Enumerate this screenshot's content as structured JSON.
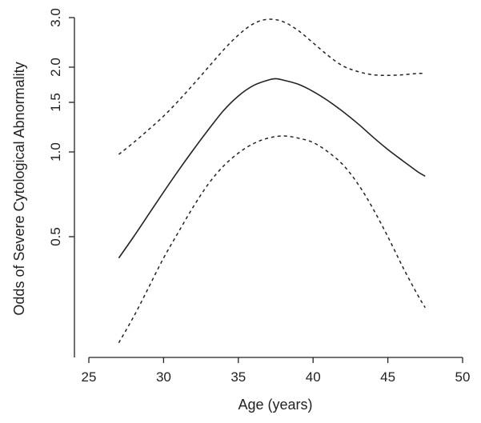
{
  "chart_data": {
    "type": "line",
    "title": "",
    "xlabel": "Age (years)",
    "ylabel": "Odds of Severe Cytological Abnormality",
    "xlim": [
      25,
      50
    ],
    "ylim": [
      0.2,
      3.0
    ],
    "yscale": "log",
    "grid": false,
    "x_ticks": [
      25,
      30,
      35,
      40,
      45,
      50
    ],
    "x_tick_labels": [
      "25",
      "30",
      "35",
      "40",
      "45",
      "50"
    ],
    "y_ticks": [
      0.5,
      1.0,
      1.5,
      2.0,
      3.0
    ],
    "y_tick_labels": [
      "0.5",
      "1.0",
      "1.5",
      "2.0",
      "3.0"
    ],
    "series": [
      {
        "style": "solid",
        "x": [
          27,
          28,
          29,
          30,
          31,
          32,
          33,
          34,
          35,
          36,
          37,
          37.5,
          38,
          39,
          40,
          41,
          42,
          43,
          44,
          45,
          46,
          47,
          47.5
        ],
        "y": [
          0.42,
          0.5,
          0.6,
          0.72,
          0.86,
          1.02,
          1.2,
          1.4,
          1.58,
          1.72,
          1.8,
          1.82,
          1.8,
          1.74,
          1.64,
          1.52,
          1.39,
          1.26,
          1.13,
          1.02,
          0.93,
          0.85,
          0.82
        ]
      },
      {
        "style": "dashed",
        "x": [
          27,
          28,
          29,
          30,
          31,
          32,
          33,
          34,
          35,
          36,
          37,
          38,
          39,
          40,
          41,
          42,
          43,
          44,
          45,
          46,
          47,
          47.5
        ],
        "y": [
          0.98,
          1.08,
          1.2,
          1.34,
          1.52,
          1.74,
          2.0,
          2.3,
          2.6,
          2.85,
          2.96,
          2.9,
          2.7,
          2.44,
          2.2,
          2.02,
          1.93,
          1.88,
          1.87,
          1.88,
          1.9,
          1.9
        ]
      },
      {
        "style": "dashed",
        "x": [
          27,
          28,
          29,
          30,
          31,
          32,
          33,
          34,
          35,
          36,
          37,
          38,
          39,
          40,
          41,
          42,
          43,
          44,
          45,
          46,
          47,
          47.5
        ],
        "y": [
          0.21,
          0.26,
          0.33,
          0.42,
          0.52,
          0.64,
          0.77,
          0.89,
          0.99,
          1.07,
          1.12,
          1.14,
          1.12,
          1.08,
          1.0,
          0.9,
          0.77,
          0.63,
          0.5,
          0.39,
          0.31,
          0.28
        ]
      }
    ]
  }
}
